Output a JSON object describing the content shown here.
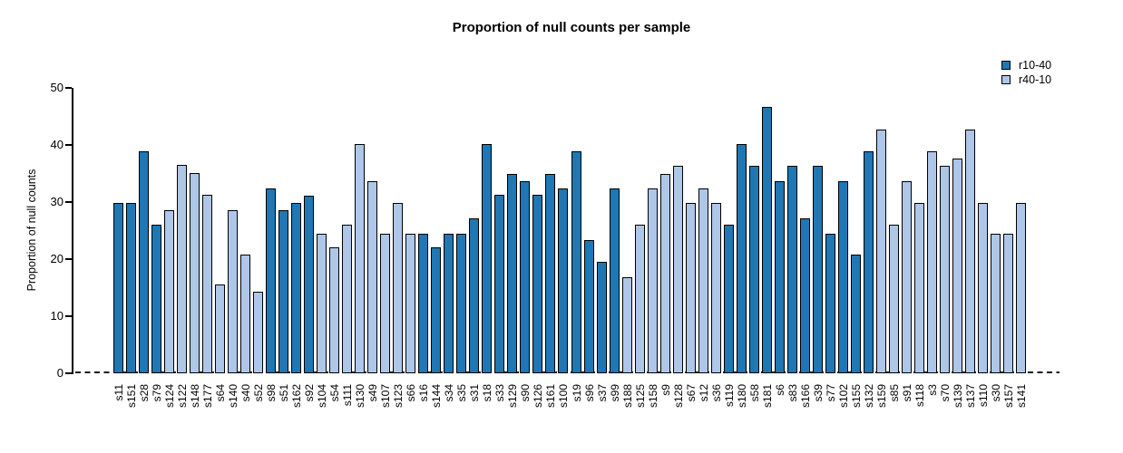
{
  "title": "Proportion of null counts per sample",
  "y_axis": {
    "label": "Proportion of null counts",
    "ticks": [
      0,
      10,
      20,
      30,
      40,
      50
    ],
    "min": 0,
    "max": 50
  },
  "legend": [
    {
      "label": "r10-40",
      "color": "#1f77b4"
    },
    {
      "label": "r40-10",
      "color": "#aec7e8"
    }
  ],
  "colors": {
    "r10-40": "#1f77b4",
    "r40-10": "#aec7e8",
    "bar_border": "#000000",
    "axis": "#000000"
  },
  "chart_data": {
    "type": "bar",
    "title": "Proportion of null counts per sample",
    "xlabel": "",
    "ylabel": "Proportion of null counts",
    "ylim": [
      0,
      50
    ],
    "grid": false,
    "legend_position": "top-right",
    "zero_line_style": "dashed",
    "series_names": [
      "r10-40",
      "r40-10"
    ],
    "samples": [
      {
        "label": "s11",
        "value": 29.8,
        "series": "r10-40"
      },
      {
        "label": "s151",
        "value": 29.8,
        "series": "r10-40"
      },
      {
        "label": "s28",
        "value": 38.9,
        "series": "r10-40"
      },
      {
        "label": "s79",
        "value": 26.0,
        "series": "r10-40"
      },
      {
        "label": "s124",
        "value": 28.6,
        "series": "r40-10"
      },
      {
        "label": "s122",
        "value": 36.5,
        "series": "r40-10"
      },
      {
        "label": "s148",
        "value": 35.0,
        "series": "r40-10"
      },
      {
        "label": "s177",
        "value": 31.3,
        "series": "r40-10"
      },
      {
        "label": "s64",
        "value": 15.6,
        "series": "r40-10"
      },
      {
        "label": "s140",
        "value": 28.6,
        "series": "r40-10"
      },
      {
        "label": "s40",
        "value": 20.8,
        "series": "r40-10"
      },
      {
        "label": "s52",
        "value": 14.3,
        "series": "r40-10"
      },
      {
        "label": "s98",
        "value": 32.4,
        "series": "r10-40"
      },
      {
        "label": "s51",
        "value": 28.6,
        "series": "r10-40"
      },
      {
        "label": "s162",
        "value": 29.8,
        "series": "r10-40"
      },
      {
        "label": "s92",
        "value": 31.1,
        "series": "r10-40"
      },
      {
        "label": "s104",
        "value": 24.5,
        "series": "r40-10"
      },
      {
        "label": "s54",
        "value": 22.1,
        "series": "r40-10"
      },
      {
        "label": "s111",
        "value": 26.0,
        "series": "r40-10"
      },
      {
        "label": "s130",
        "value": 40.1,
        "series": "r40-10"
      },
      {
        "label": "s49",
        "value": 33.6,
        "series": "r40-10"
      },
      {
        "label": "s107",
        "value": 24.5,
        "series": "r40-10"
      },
      {
        "label": "s123",
        "value": 29.8,
        "series": "r40-10"
      },
      {
        "label": "s66",
        "value": 24.5,
        "series": "r40-10"
      },
      {
        "label": "s16",
        "value": 24.5,
        "series": "r10-40"
      },
      {
        "label": "s144",
        "value": 22.1,
        "series": "r10-40"
      },
      {
        "label": "s34",
        "value": 24.5,
        "series": "r10-40"
      },
      {
        "label": "s35",
        "value": 24.5,
        "series": "r10-40"
      },
      {
        "label": "s31",
        "value": 27.2,
        "series": "r10-40"
      },
      {
        "label": "s18",
        "value": 40.1,
        "series": "r10-40"
      },
      {
        "label": "s33",
        "value": 31.2,
        "series": "r10-40"
      },
      {
        "label": "s129",
        "value": 34.9,
        "series": "r10-40"
      },
      {
        "label": "s90",
        "value": 33.6,
        "series": "r10-40"
      },
      {
        "label": "s126",
        "value": 31.2,
        "series": "r10-40"
      },
      {
        "label": "s161",
        "value": 34.9,
        "series": "r10-40"
      },
      {
        "label": "s100",
        "value": 32.4,
        "series": "r10-40"
      },
      {
        "label": "s19",
        "value": 38.9,
        "series": "r10-40"
      },
      {
        "label": "s96",
        "value": 23.3,
        "series": "r10-40"
      },
      {
        "label": "s37",
        "value": 19.5,
        "series": "r10-40"
      },
      {
        "label": "s99",
        "value": 32.4,
        "series": "r10-40"
      },
      {
        "label": "s188",
        "value": 16.9,
        "series": "r40-10"
      },
      {
        "label": "s125",
        "value": 26.0,
        "series": "r40-10"
      },
      {
        "label": "s158",
        "value": 32.4,
        "series": "r40-10"
      },
      {
        "label": "s9",
        "value": 34.9,
        "series": "r40-10"
      },
      {
        "label": "s128",
        "value": 36.4,
        "series": "r40-10"
      },
      {
        "label": "s67",
        "value": 29.8,
        "series": "r40-10"
      },
      {
        "label": "s12",
        "value": 32.4,
        "series": "r40-10"
      },
      {
        "label": "s36",
        "value": 29.8,
        "series": "r40-10"
      },
      {
        "label": "s119",
        "value": 26.0,
        "series": "r10-40"
      },
      {
        "label": "s180",
        "value": 40.1,
        "series": "r10-40"
      },
      {
        "label": "s58",
        "value": 36.4,
        "series": "r10-40"
      },
      {
        "label": "s181",
        "value": 46.7,
        "series": "r10-40"
      },
      {
        "label": "s6",
        "value": 33.6,
        "series": "r10-40"
      },
      {
        "label": "s83",
        "value": 36.3,
        "series": "r10-40"
      },
      {
        "label": "s166",
        "value": 27.2,
        "series": "r10-40"
      },
      {
        "label": "s39",
        "value": 36.3,
        "series": "r10-40"
      },
      {
        "label": "s77",
        "value": 24.5,
        "series": "r10-40"
      },
      {
        "label": "s102",
        "value": 33.6,
        "series": "r10-40"
      },
      {
        "label": "s155",
        "value": 20.8,
        "series": "r10-40"
      },
      {
        "label": "s132",
        "value": 38.9,
        "series": "r10-40"
      },
      {
        "label": "s159",
        "value": 42.7,
        "series": "r40-10"
      },
      {
        "label": "s85",
        "value": 26.0,
        "series": "r40-10"
      },
      {
        "label": "s91",
        "value": 33.6,
        "series": "r40-10"
      },
      {
        "label": "s118",
        "value": 29.8,
        "series": "r40-10"
      },
      {
        "label": "s3",
        "value": 38.9,
        "series": "r40-10"
      },
      {
        "label": "s70",
        "value": 36.3,
        "series": "r40-10"
      },
      {
        "label": "s139",
        "value": 37.6,
        "series": "r40-10"
      },
      {
        "label": "s137",
        "value": 42.7,
        "series": "r40-10"
      },
      {
        "label": "s110",
        "value": 29.8,
        "series": "r40-10"
      },
      {
        "label": "s30",
        "value": 24.5,
        "series": "r40-10"
      },
      {
        "label": "s157",
        "value": 24.5,
        "series": "r40-10"
      },
      {
        "label": "s141",
        "value": 29.8,
        "series": "r40-10"
      }
    ]
  }
}
